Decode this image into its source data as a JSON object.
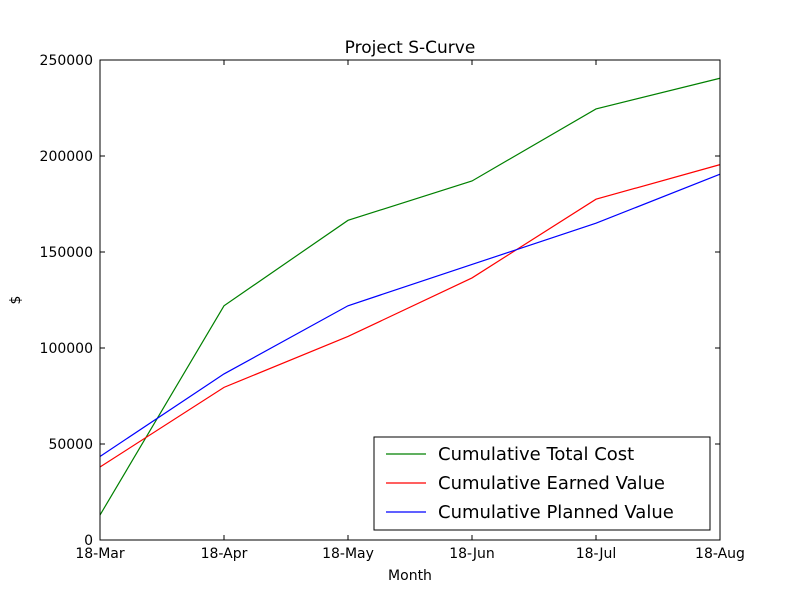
{
  "chart_data": {
    "type": "line",
    "title": "Project S-Curve",
    "xlabel": "Month",
    "ylabel": "$",
    "categories": [
      "18-Mar",
      "18-Apr",
      "18-May",
      "18-Jun",
      "18-Jul",
      "18-Aug"
    ],
    "ylim": [
      0,
      250000
    ],
    "yticks": [
      0,
      50000,
      100000,
      150000,
      200000,
      250000
    ],
    "ytick_labels": [
      "0",
      "50000",
      "100000",
      "150000",
      "200000",
      "250000"
    ],
    "grid": false,
    "legend_position": "bottom-right",
    "series": [
      {
        "name": "Cumulative Total Cost",
        "color": "#008000",
        "values": [
          13000,
          122000,
          166500,
          187000,
          224500,
          240500
        ]
      },
      {
        "name": "Cumulative Earned Value",
        "color": "#ff0000",
        "values": [
          38000,
          79500,
          106000,
          136500,
          177500,
          195500
        ]
      },
      {
        "name": "Cumulative Planned Value",
        "color": "#0000ff",
        "values": [
          43500,
          86500,
          122000,
          143500,
          165000,
          190500
        ]
      }
    ]
  }
}
